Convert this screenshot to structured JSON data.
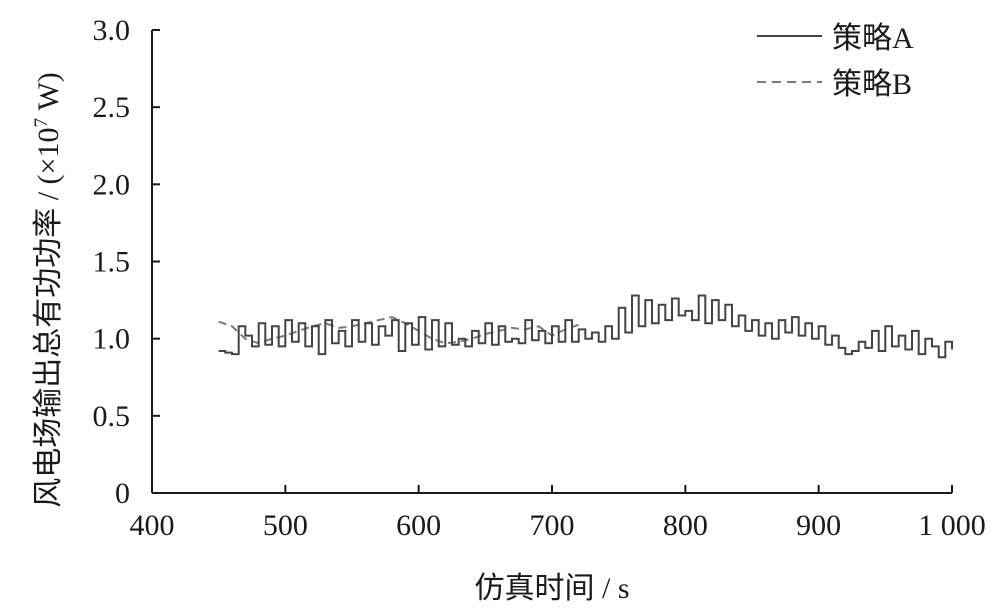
{
  "chart_data": {
    "type": "line",
    "xlabel": "仿真时间 / s",
    "ylabel_main": "风电场输出总有功功率 / (×10",
    "ylabel_exp": "7",
    "ylabel_tail": " W)",
    "xlim": [
      400,
      1000
    ],
    "ylim": [
      0,
      3.0
    ],
    "x_ticks": [
      400,
      500,
      600,
      700,
      800,
      900,
      1000
    ],
    "x_tick_labels": [
      "400",
      "500",
      "600",
      "700",
      "800",
      "900",
      "1 000"
    ],
    "y_ticks": [
      0,
      0.5,
      1.0,
      1.5,
      2.0,
      2.5,
      3.0
    ],
    "y_tick_labels": [
      "0",
      "0.5",
      "1.0",
      "1.5",
      "2.0",
      "2.5",
      "3.0"
    ],
    "grid": false,
    "legend_position": "top-right",
    "series": [
      {
        "name": "策略A",
        "style": "solid",
        "color": "#444444",
        "step": true,
        "x": [
          450,
          455,
          460,
          465,
          470,
          475,
          480,
          485,
          490,
          495,
          500,
          505,
          510,
          515,
          520,
          525,
          530,
          535,
          540,
          545,
          550,
          555,
          560,
          565,
          570,
          575,
          580,
          585,
          590,
          595,
          600,
          605,
          610,
          615,
          620,
          625,
          630,
          635,
          640,
          645,
          650,
          655,
          660,
          665,
          670,
          675,
          680,
          685,
          690,
          695,
          700,
          705,
          710,
          715,
          720,
          725,
          730,
          735,
          740,
          745,
          750,
          755,
          760,
          765,
          770,
          775,
          780,
          785,
          790,
          795,
          800,
          805,
          810,
          815,
          820,
          825,
          830,
          835,
          840,
          845,
          850,
          855,
          860,
          865,
          870,
          875,
          880,
          885,
          890,
          895,
          900,
          905,
          910,
          915,
          920,
          925,
          930,
          935,
          940,
          945,
          950,
          955,
          960,
          965,
          970,
          975,
          980,
          985,
          990,
          995,
          1000
        ],
        "y": [
          0.92,
          0.91,
          0.9,
          1.08,
          1.02,
          0.95,
          1.1,
          0.96,
          1.08,
          0.95,
          1.12,
          0.98,
          1.1,
          0.95,
          1.08,
          0.9,
          1.12,
          0.97,
          1.05,
          0.95,
          1.12,
          0.98,
          1.1,
          0.96,
          1.08,
          1.02,
          1.12,
          0.92,
          1.1,
          0.96,
          1.14,
          0.93,
          1.12,
          0.95,
          1.1,
          0.96,
          1.0,
          0.95,
          1.05,
          0.97,
          1.1,
          0.96,
          1.08,
          0.98,
          1.0,
          0.97,
          1.12,
          0.99,
          1.05,
          0.97,
          1.08,
          0.98,
          1.12,
          0.98,
          1.06,
          1.0,
          1.04,
          0.98,
          1.08,
          1.0,
          1.2,
          1.04,
          1.28,
          1.08,
          1.25,
          1.1,
          1.22,
          1.12,
          1.26,
          1.15,
          1.18,
          1.12,
          1.28,
          1.1,
          1.25,
          1.12,
          1.22,
          1.08,
          1.15,
          1.05,
          1.12,
          1.02,
          1.1,
          1.0,
          1.12,
          1.04,
          1.14,
          1.02,
          1.1,
          1.0,
          1.08,
          0.96,
          1.02,
          0.94,
          0.9,
          0.92,
          0.98,
          0.94,
          1.05,
          0.92,
          1.08,
          0.95,
          1.02,
          0.93,
          1.05,
          0.9,
          1.0,
          0.95,
          0.88,
          0.98,
          0.93
        ]
      },
      {
        "name": "策略B",
        "style": "dashed",
        "color": "#7a7a7a",
        "step": false,
        "x": [
          450,
          460,
          470,
          480,
          490,
          500,
          510,
          520,
          530,
          540,
          550,
          560,
          570,
          580,
          590,
          600,
          610,
          620,
          630,
          640,
          650,
          660,
          670,
          680,
          690,
          700,
          710,
          720
        ],
        "y": [
          1.11,
          1.08,
          1.0,
          0.97,
          1.0,
          1.02,
          1.05,
          1.08,
          1.1,
          1.07,
          1.08,
          1.1,
          1.12,
          1.14,
          1.1,
          1.05,
          1.0,
          0.97,
          0.98,
          1.0,
          1.03,
          1.05,
          1.07,
          1.06,
          1.08,
          1.02,
          1.06,
          1.09
        ]
      }
    ]
  }
}
